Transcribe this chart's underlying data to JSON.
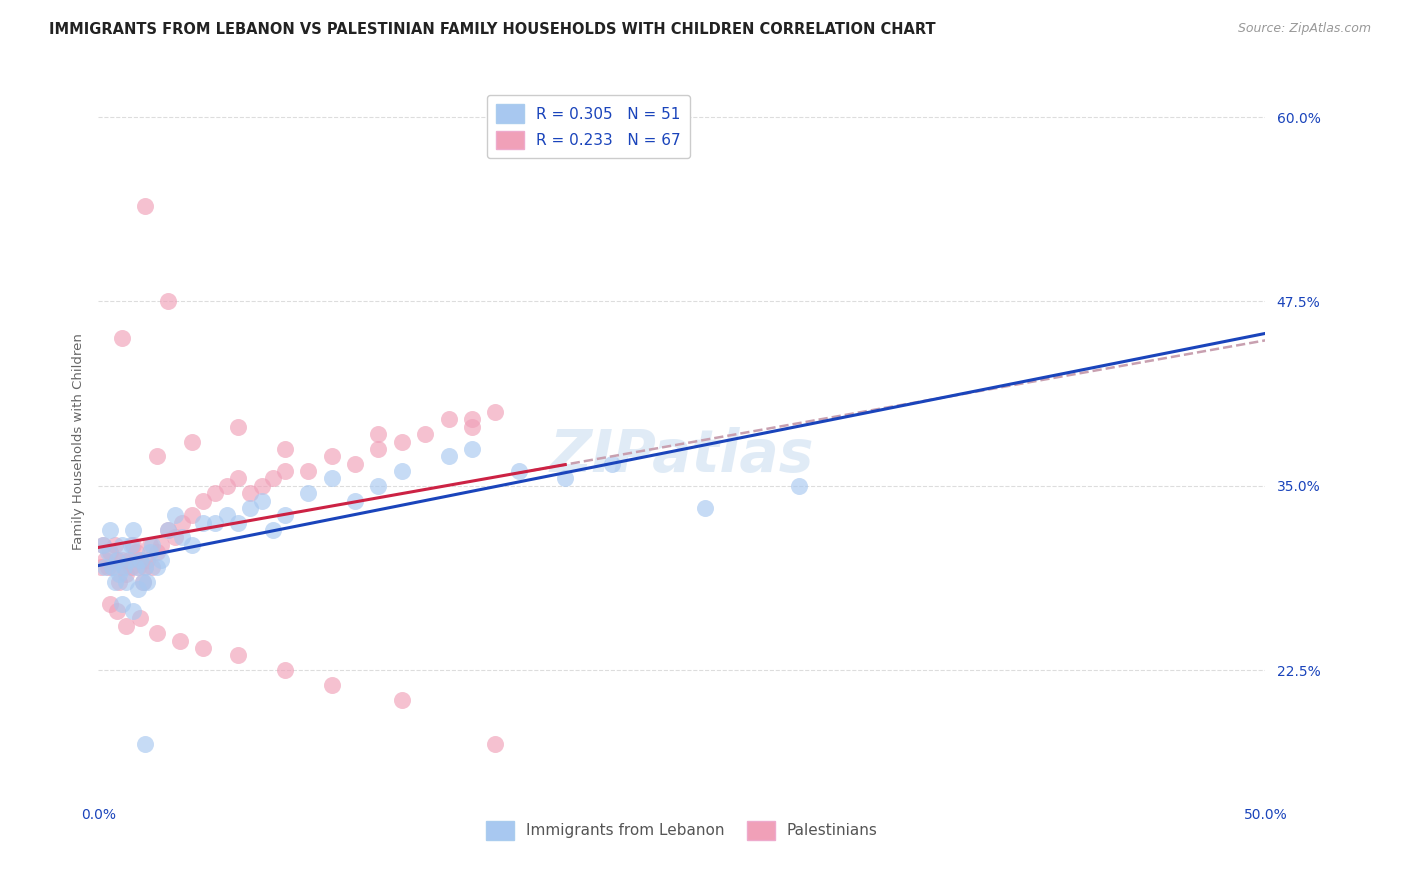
{
  "title": "IMMIGRANTS FROM LEBANON VS PALESTINIAN FAMILY HOUSEHOLDS WITH CHILDREN CORRELATION CHART",
  "source": "Source: ZipAtlas.com",
  "ylabel": "Family Households with Children",
  "legend_blue_r": "R = 0.305",
  "legend_blue_n": "N = 51",
  "legend_pink_r": "R = 0.233",
  "legend_pink_n": "N = 67",
  "legend_label_blue": "Immigrants from Lebanon",
  "legend_label_pink": "Palestinians",
  "watermark": "ZIPatlas",
  "xlim": [
    0.0,
    0.5
  ],
  "ylim": [
    0.135,
    0.625
  ],
  "yticks": [
    0.225,
    0.35,
    0.475,
    0.6
  ],
  "ytick_labels": [
    "22.5%",
    "35.0%",
    "47.5%",
    "60.0%"
  ],
  "xticks": [
    0.0,
    0.1,
    0.2,
    0.3,
    0.4,
    0.5
  ],
  "xtick_labels": [
    "0.0%",
    "",
    "",
    "",
    "",
    "50.0%"
  ],
  "blue_color": "#A8C8F0",
  "pink_color": "#F0A0B8",
  "blue_line_color": "#1A44BB",
  "pink_line_color": "#CC2244",
  "gray_dashed_color": "#C8A0B0",
  "background_color": "#FFFFFF",
  "grid_color": "#DDDDDD",
  "blue_scatter_x": [
    0.002,
    0.003,
    0.004,
    0.005,
    0.006,
    0.007,
    0.008,
    0.009,
    0.01,
    0.011,
    0.012,
    0.013,
    0.014,
    0.015,
    0.016,
    0.017,
    0.018,
    0.019,
    0.02,
    0.021,
    0.022,
    0.023,
    0.025,
    0.027,
    0.03,
    0.033,
    0.036,
    0.04,
    0.045,
    0.05,
    0.055,
    0.06,
    0.065,
    0.07,
    0.075,
    0.08,
    0.09,
    0.1,
    0.11,
    0.12,
    0.13,
    0.15,
    0.16,
    0.18,
    0.2,
    0.22,
    0.26,
    0.3,
    0.01,
    0.015,
    0.02
  ],
  "blue_scatter_y": [
    0.31,
    0.295,
    0.305,
    0.32,
    0.295,
    0.285,
    0.3,
    0.29,
    0.31,
    0.295,
    0.285,
    0.3,
    0.31,
    0.32,
    0.295,
    0.28,
    0.3,
    0.285,
    0.295,
    0.285,
    0.305,
    0.31,
    0.295,
    0.3,
    0.32,
    0.33,
    0.315,
    0.31,
    0.325,
    0.325,
    0.33,
    0.325,
    0.335,
    0.34,
    0.32,
    0.33,
    0.345,
    0.355,
    0.34,
    0.35,
    0.36,
    0.37,
    0.375,
    0.36,
    0.355,
    0.365,
    0.335,
    0.35,
    0.27,
    0.265,
    0.175
  ],
  "pink_scatter_x": [
    0.001,
    0.002,
    0.003,
    0.004,
    0.005,
    0.006,
    0.007,
    0.008,
    0.009,
    0.01,
    0.011,
    0.012,
    0.013,
    0.014,
    0.015,
    0.016,
    0.017,
    0.018,
    0.019,
    0.02,
    0.021,
    0.022,
    0.023,
    0.025,
    0.027,
    0.03,
    0.033,
    0.036,
    0.04,
    0.045,
    0.05,
    0.055,
    0.06,
    0.065,
    0.07,
    0.075,
    0.08,
    0.09,
    0.1,
    0.11,
    0.12,
    0.13,
    0.14,
    0.15,
    0.16,
    0.17,
    0.005,
    0.008,
    0.012,
    0.018,
    0.025,
    0.035,
    0.045,
    0.06,
    0.08,
    0.1,
    0.13,
    0.025,
    0.04,
    0.06,
    0.08,
    0.12,
    0.16,
    0.01,
    0.02,
    0.03,
    0.17
  ],
  "pink_scatter_y": [
    0.295,
    0.31,
    0.3,
    0.295,
    0.305,
    0.295,
    0.31,
    0.3,
    0.285,
    0.3,
    0.295,
    0.29,
    0.3,
    0.295,
    0.31,
    0.305,
    0.295,
    0.3,
    0.285,
    0.295,
    0.3,
    0.31,
    0.295,
    0.305,
    0.31,
    0.32,
    0.315,
    0.325,
    0.33,
    0.34,
    0.345,
    0.35,
    0.355,
    0.345,
    0.35,
    0.355,
    0.36,
    0.36,
    0.37,
    0.365,
    0.375,
    0.38,
    0.385,
    0.395,
    0.395,
    0.4,
    0.27,
    0.265,
    0.255,
    0.26,
    0.25,
    0.245,
    0.24,
    0.235,
    0.225,
    0.215,
    0.205,
    0.37,
    0.38,
    0.39,
    0.375,
    0.385,
    0.39,
    0.45,
    0.54,
    0.475,
    0.175
  ],
  "title_fontsize": 10.5,
  "source_fontsize": 9,
  "axis_label_fontsize": 9.5,
  "tick_fontsize": 10,
  "legend_fontsize": 11,
  "watermark_fontsize": 42,
  "watermark_color": "#C8DCF0",
  "watermark_alpha": 0.55
}
